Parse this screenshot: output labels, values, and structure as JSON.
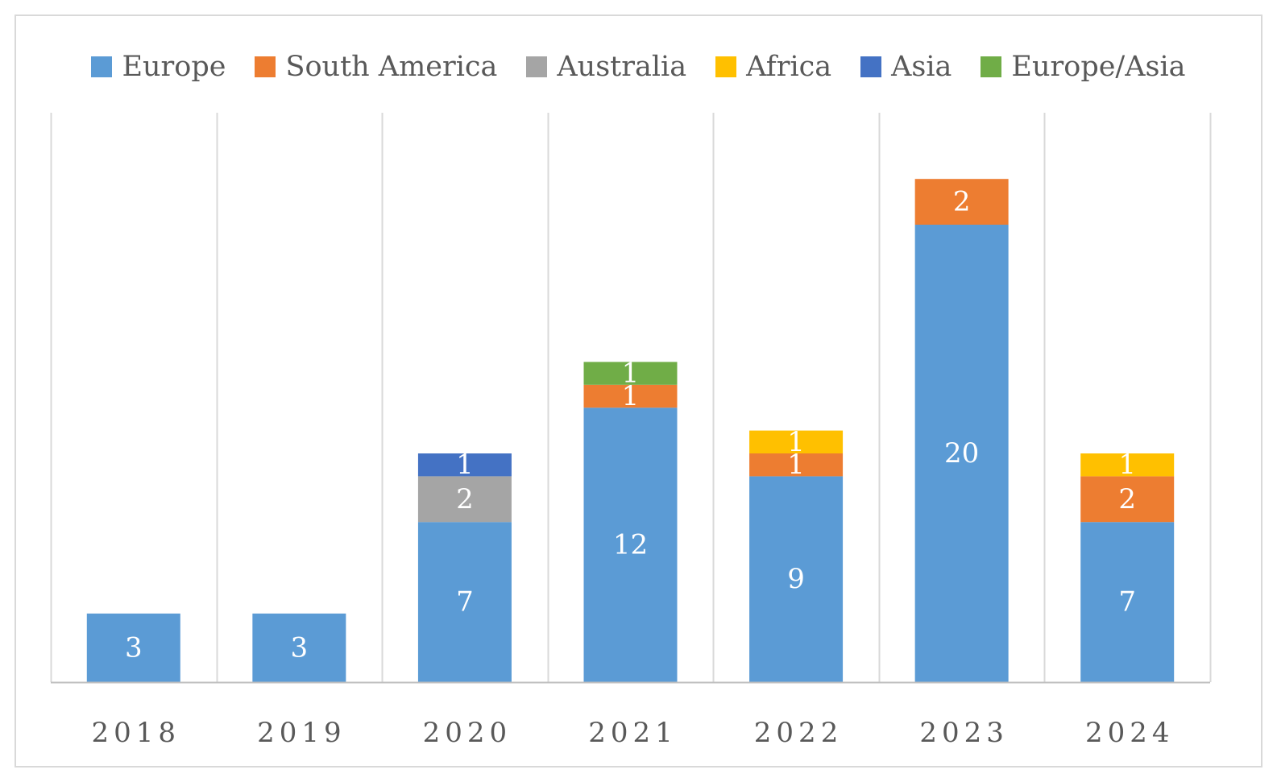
{
  "chart_data": {
    "type": "bar",
    "stacked": true,
    "title": "",
    "xlabel": "",
    "ylabel": "",
    "categories": [
      "2018",
      "2019",
      "2020",
      "2021",
      "2022",
      "2023",
      "2024"
    ],
    "series": [
      {
        "name": "Europe",
        "color": "#5b9bd5",
        "values": [
          3,
          3,
          7,
          12,
          9,
          20,
          7
        ]
      },
      {
        "name": "South America",
        "color": "#ed7d31",
        "values": [
          0,
          0,
          0,
          1,
          1,
          2,
          2
        ]
      },
      {
        "name": "Australia",
        "color": "#a5a5a5",
        "values": [
          0,
          0,
          2,
          0,
          0,
          0,
          0
        ]
      },
      {
        "name": "Africa",
        "color": "#ffc000",
        "values": [
          0,
          0,
          0,
          0,
          1,
          0,
          1
        ]
      },
      {
        "name": "Asia",
        "color": "#4472c4",
        "values": [
          0,
          0,
          1,
          0,
          0,
          0,
          0
        ]
      },
      {
        "name": "Europe/Asia",
        "color": "#70ad47",
        "values": [
          0,
          0,
          0,
          1,
          0,
          0,
          0
        ]
      }
    ],
    "ylim": [
      0,
      25
    ],
    "grid": "vertical separators only",
    "legend": "top-center",
    "data_labels": true
  }
}
